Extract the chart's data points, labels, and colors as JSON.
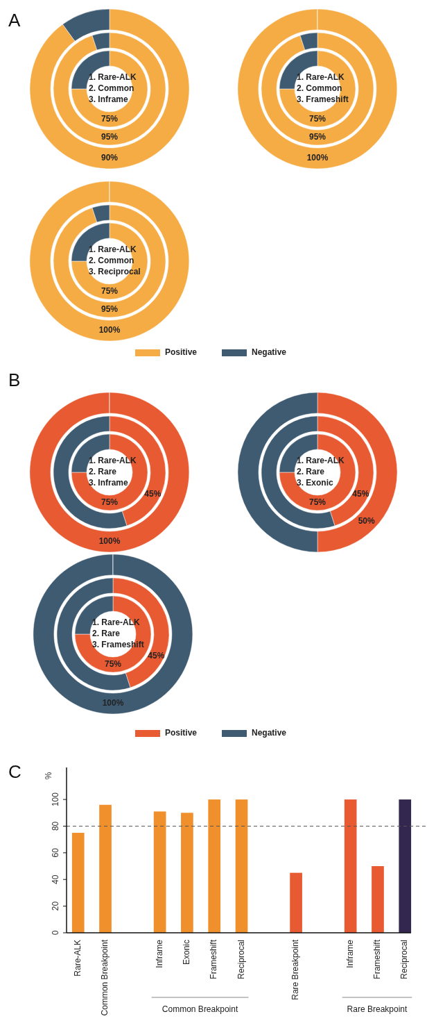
{
  "chart_data": [
    {
      "type": "donut",
      "title": "A",
      "colors": [
        "#f5ac45",
        "#3f5b72"
      ],
      "annotations": [
        "1. Rare-ALK",
        "2. Common",
        "3. Inframe"
      ],
      "series": [
        {
          "values": [
            75,
            25
          ],
          "value_labels": [
            "75%",
            null
          ]
        },
        {
          "values": [
            95,
            5
          ],
          "value_labels": [
            "95%",
            null
          ]
        },
        {
          "values": [
            90,
            10
          ],
          "value_labels": [
            "90%",
            null
          ]
        }
      ]
    },
    {
      "type": "donut",
      "colors": [
        "#f5ac45",
        "#3f5b72"
      ],
      "annotations": [
        "1. Rare-ALK",
        "2. Common",
        "3. Frameshift"
      ],
      "series": [
        {
          "values": [
            75,
            25
          ],
          "value_labels": [
            "75%",
            null
          ]
        },
        {
          "values": [
            95,
            5
          ],
          "value_labels": [
            "95%",
            null
          ]
        },
        {
          "values": [
            100,
            0
          ],
          "value_labels": [
            "100%",
            null
          ]
        }
      ]
    },
    {
      "type": "donut",
      "categories": [
        "Positive",
        "Negative"
      ],
      "colors": [
        "#f5ac45",
        "#3f5b72"
      ],
      "legend": "bottom",
      "annotations": [
        "1. Rare-ALK",
        "2. Common",
        "3. Reciprocal"
      ],
      "series": [
        {
          "values": [
            75,
            25
          ],
          "value_labels": [
            "75%",
            null
          ]
        },
        {
          "values": [
            95,
            5
          ],
          "value_labels": [
            "95%",
            null
          ]
        },
        {
          "values": [
            100,
            0
          ],
          "value_labels": [
            "100%",
            null
          ]
        }
      ]
    },
    {
      "type": "donut",
      "title": "B",
      "colors": [
        "#e85a32",
        "#3f5b72"
      ],
      "annotations": [
        "1. Rare-ALK",
        "2. Rare",
        "3. Inframe"
      ],
      "series": [
        {
          "values": [
            75,
            25
          ],
          "value_labels": [
            "75%",
            null
          ]
        },
        {
          "values": [
            45,
            55
          ],
          "value_labels": [
            "45%",
            null
          ]
        },
        {
          "values": [
            100,
            0
          ],
          "value_labels": [
            "100%",
            null
          ]
        }
      ]
    },
    {
      "type": "donut",
      "colors": [
        "#e85a32",
        "#3f5b72"
      ],
      "annotations": [
        "1. Rare-ALK",
        "2. Rare",
        "3. Exonic"
      ],
      "series": [
        {
          "values": [
            75,
            25
          ],
          "value_labels": [
            "75%",
            null
          ]
        },
        {
          "values": [
            45,
            55
          ],
          "value_labels": [
            "45%",
            null
          ]
        },
        {
          "values": [
            50,
            50
          ],
          "value_labels": [
            "50%",
            null
          ]
        }
      ]
    },
    {
      "type": "donut",
      "categories": [
        "Positive",
        "Negative"
      ],
      "colors": [
        "#e85a32",
        "#3f5b72"
      ],
      "legend": "bottom",
      "annotations": [
        "1. Rare-ALK",
        "2. Rare",
        "3. Frameshift"
      ],
      "series": [
        {
          "values": [
            75,
            25
          ],
          "value_labels": [
            "75%",
            null
          ]
        },
        {
          "values": [
            45,
            55
          ],
          "value_labels": [
            "45%",
            null
          ]
        },
        {
          "values": [
            100,
            0
          ],
          "colors": [
            "#3f5b72",
            "#3f5b72"
          ],
          "value_labels": [
            "100%",
            null
          ]
        }
      ]
    },
    {
      "type": "bar",
      "title": "C",
      "ylabel": "%",
      "categories": [
        "Rare-ALK",
        "Common Breakpoint",
        null,
        "Inframe",
        "Exonic",
        "Frameshift",
        "Reciprocal",
        null,
        "Rare Breakpoint",
        null,
        "Inframe",
        "Frameshift",
        "Reciprocal"
      ],
      "values": [
        75,
        96,
        null,
        91,
        90,
        100,
        100,
        null,
        45,
        null,
        100,
        50,
        100
      ],
      "colors": [
        "#f0902c",
        "#f0902c",
        null,
        "#f0902c",
        "#f0902c",
        "#f0902c",
        "#f0902c",
        null,
        "#e85a32",
        null,
        "#e85a32",
        "#e85a32",
        "#33264f"
      ],
      "ylim": [
        0,
        124
      ],
      "yticks": [
        0,
        20,
        40,
        60,
        80,
        100
      ],
      "ref_lines": [
        {
          "axis": "y",
          "value": 80,
          "line_style": "dashed",
          "color": "#555555"
        }
      ],
      "annotations": [
        "Common Breakpoint",
        "Rare Breakpoint"
      ]
    }
  ]
}
